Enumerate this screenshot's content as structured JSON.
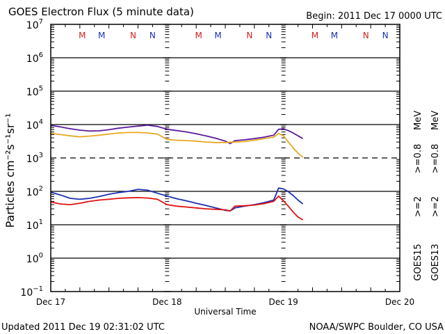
{
  "chart_data": {
    "type": "line",
    "title": "GOES Electron Flux (5 minute data)",
    "begin_label": "Begin: 2011 Dec 17 0000 UTC",
    "xlabel": "Universal Time",
    "ylabel": "Particles cm⁻²s⁻¹sr⁻¹",
    "yscale": "log",
    "ylim": [
      0.1,
      10000000
    ],
    "xlim_hours": [
      0,
      72
    ],
    "grid": true,
    "y_ticks": [
      {
        "base": "10",
        "exp": "7",
        "value": 10000000
      },
      {
        "base": "10",
        "exp": "6",
        "value": 1000000
      },
      {
        "base": "10",
        "exp": "5",
        "value": 100000
      },
      {
        "base": "10",
        "exp": "4",
        "value": 10000
      },
      {
        "base": "10",
        "exp": "3",
        "value": 1000
      },
      {
        "base": "10",
        "exp": "2",
        "value": 100
      },
      {
        "base": "10",
        "exp": "1",
        "value": 10
      },
      {
        "base": "10",
        "exp": "0",
        "value": 1
      },
      {
        "base": "10",
        "exp": "−1",
        "value": 0.1
      }
    ],
    "x_ticks": [
      {
        "label": "Dec 17",
        "hour": 0
      },
      {
        "label": "Dec 18",
        "hour": 24
      },
      {
        "label": "Dec 19",
        "hour": 48
      },
      {
        "label": "Dec 20",
        "hour": 72
      }
    ],
    "threshold_line": {
      "value": 1000,
      "style": "dashed"
    },
    "mn_markers": [
      {
        "label": "M",
        "hour": 6.5,
        "color": "#d42020"
      },
      {
        "label": "M",
        "hour": 10.5,
        "color": "#1a2fb0"
      },
      {
        "label": "N",
        "hour": 17.0,
        "color": "#d42020"
      },
      {
        "label": "N",
        "hour": 21.0,
        "color": "#1a2fb0"
      },
      {
        "label": "M",
        "hour": 30.5,
        "color": "#d42020"
      },
      {
        "label": "M",
        "hour": 34.5,
        "color": "#1a2fb0"
      },
      {
        "label": "N",
        "hour": 41.0,
        "color": "#d42020"
      },
      {
        "label": "N",
        "hour": 45.0,
        "color": "#1a2fb0"
      },
      {
        "label": "M",
        "hour": 54.5,
        "color": "#d42020"
      },
      {
        "label": "M",
        "hour": 58.5,
        "color": "#1a2fb0"
      },
      {
        "label": "N",
        "hour": 65.0,
        "color": "#d42020"
      },
      {
        "label": "N",
        "hour": 69.0,
        "color": "#1a2fb0"
      }
    ],
    "series": [
      {
        "name": "GOES15 >=0.8 MeV",
        "color": "#5a1a9a",
        "hours": [
          0,
          2,
          4,
          6,
          8,
          10,
          12,
          14,
          16,
          18,
          20,
          22,
          24,
          26,
          28,
          30,
          32,
          34,
          36,
          37,
          38,
          40,
          42,
          44,
          46,
          47,
          48,
          49,
          50,
          51,
          52
        ],
        "values": [
          9500,
          8500,
          7500,
          6800,
          6400,
          6500,
          7000,
          7800,
          8400,
          9000,
          9600,
          8800,
          7200,
          6600,
          6000,
          5300,
          4600,
          3900,
          3200,
          2700,
          3300,
          3500,
          3800,
          4200,
          4800,
          7200,
          7400,
          6600,
          5600,
          4600,
          3800
        ]
      },
      {
        "name": "GOES13 >=0.8 MeV",
        "color": "#e8a820",
        "hours": [
          0,
          2,
          4,
          6,
          8,
          10,
          12,
          14,
          16,
          18,
          20,
          22,
          24,
          26,
          28,
          30,
          32,
          34,
          36,
          38,
          40,
          42,
          44,
          46,
          47,
          48,
          49,
          50,
          51,
          52
        ],
        "values": [
          5500,
          5000,
          4600,
          4300,
          4500,
          4800,
          5200,
          5600,
          5800,
          5800,
          5600,
          5200,
          3600,
          3400,
          3300,
          3200,
          3000,
          2900,
          2900,
          3000,
          3100,
          3400,
          3800,
          4200,
          5400,
          4600,
          3000,
          2000,
          1400,
          1050
        ]
      },
      {
        "name": "GOES15 >=2 MeV",
        "color": "#1a2fb0",
        "hours": [
          0,
          2,
          4,
          6,
          8,
          10,
          12,
          14,
          16,
          18,
          20,
          22,
          24,
          26,
          28,
          30,
          32,
          34,
          36,
          37,
          38,
          40,
          42,
          44,
          46,
          47,
          48,
          49,
          50,
          51,
          52
        ],
        "values": [
          95,
          78,
          62,
          58,
          62,
          70,
          82,
          92,
          100,
          115,
          108,
          88,
          72,
          60,
          52,
          44,
          38,
          32,
          27,
          26,
          32,
          36,
          40,
          46,
          55,
          125,
          118,
          98,
          75,
          55,
          42
        ]
      },
      {
        "name": "GOES13 >=2 MeV",
        "color": "#e01010",
        "hours": [
          0,
          2,
          4,
          6,
          8,
          10,
          12,
          14,
          16,
          18,
          20,
          22,
          24,
          26,
          28,
          30,
          32,
          34,
          36,
          37,
          38,
          40,
          42,
          44,
          46,
          47,
          48,
          49,
          50,
          51,
          52
        ],
        "values": [
          48,
          42,
          40,
          44,
          50,
          55,
          58,
          62,
          64,
          65,
          63,
          58,
          40,
          36,
          34,
          32,
          30,
          29,
          28,
          26,
          36,
          37,
          39,
          43,
          50,
          72,
          52,
          36,
          24,
          17,
          14
        ]
      }
    ],
    "legend": [
      {
        "sat": "GOES15",
        "lo": ">=2",
        "hi": ">=0.8",
        "unit": "MeV",
        "lo_color": "#1a2fb0",
        "hi_color": "#5a1a9a"
      },
      {
        "sat": "GOES13",
        "lo": ">=2",
        "hi": ">=0.8",
        "unit": "MeV",
        "lo_color": "#e01010",
        "hi_color": "#e8a820"
      }
    ],
    "legend_placement": "right"
  },
  "footer": {
    "updated": "Updated 2011 Dec 19 02:31:02 UTC",
    "credit": "NOAA/SWPC Boulder, CO USA"
  }
}
